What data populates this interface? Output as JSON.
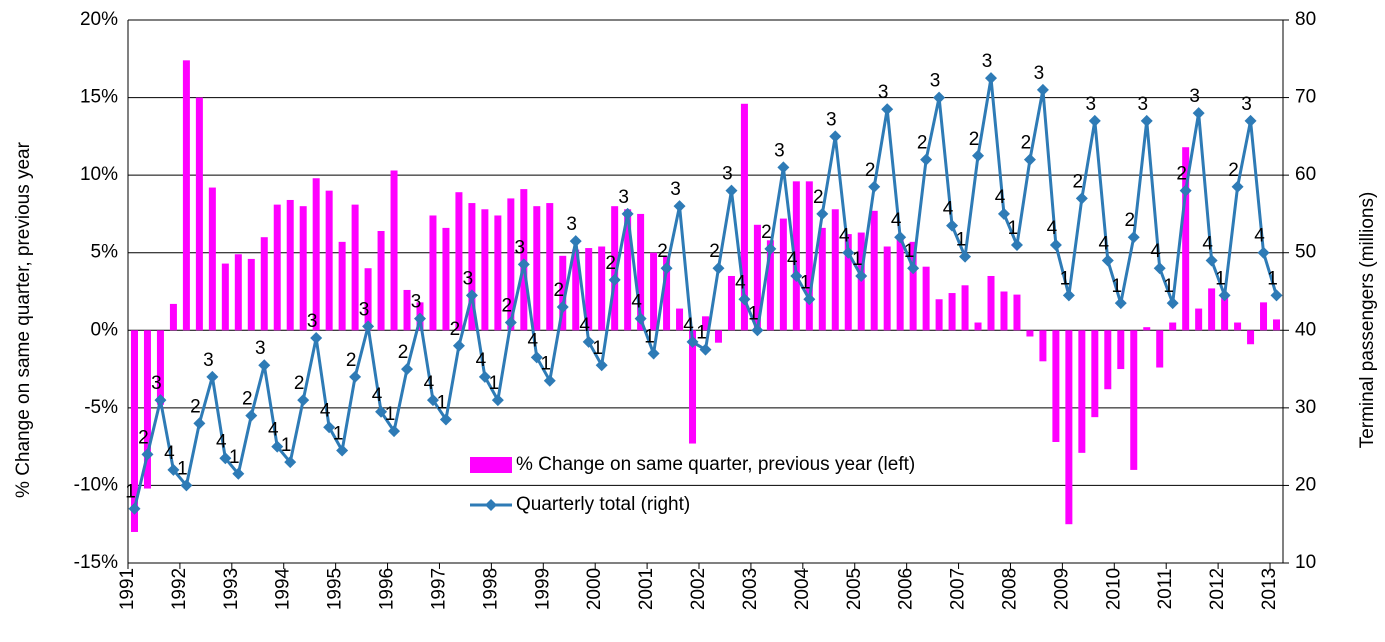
{
  "chart_data": {
    "type": "bar-line",
    "categories": [
      "1",
      "2",
      "3",
      "4",
      "1",
      "2",
      "3",
      "4",
      "1",
      "2",
      "3",
      "4",
      "1",
      "2",
      "3",
      "4",
      "1",
      "2",
      "3",
      "4",
      "1",
      "2",
      "3",
      "4",
      "1",
      "2",
      "3",
      "4",
      "1",
      "2",
      "3",
      "4",
      "1",
      "2",
      "3",
      "4",
      "1",
      "2",
      "3",
      "4",
      "1",
      "2",
      "3",
      "4",
      "1",
      "2",
      "3",
      "4",
      "1",
      "2",
      "3",
      "4",
      "1",
      "2",
      "3",
      "4",
      "1",
      "2",
      "3",
      "4",
      "1",
      "2",
      "3",
      "4",
      "1",
      "2",
      "3",
      "4",
      "1",
      "2",
      "3",
      "4",
      "1",
      "2",
      "3",
      "4",
      "1",
      "2",
      "3",
      "4",
      "1",
      "2",
      "3",
      "4",
      "1",
      "2",
      "3",
      "4",
      "1"
    ],
    "x_axis_labels": [
      "1991",
      "1992",
      "1993",
      "1994",
      "1995",
      "1996",
      "1997",
      "1998",
      "1999",
      "2000",
      "2001",
      "2002",
      "2003",
      "2004",
      "2005",
      "2006",
      "2007",
      "2008",
      "2009",
      "2010",
      "2011",
      "2012",
      "2013"
    ],
    "y_label": "% Change on same quarter, previous year",
    "y2_label": "Terminal passengers (millions)",
    "series": [
      {
        "name": "% Change on same quarter, previous year (left)",
        "color": "#ff00ff",
        "type": "bar",
        "values": [
          -13.0,
          -10.2,
          -4.8,
          1.7,
          17.4,
          15.0,
          9.2,
          4.3,
          4.9,
          4.6,
          6.0,
          8.1,
          8.4,
          8.0,
          9.8,
          9.0,
          5.7,
          8.1,
          4.0,
          6.4,
          10.3,
          2.6,
          1.8,
          7.4,
          6.6,
          8.9,
          8.2,
          7.8,
          7.4,
          8.5,
          9.1,
          8.0,
          8.2,
          4.8,
          5.2,
          5.3,
          5.4,
          8.0,
          7.8,
          7.5,
          5.0,
          4.8,
          1.4,
          -7.3,
          0.9,
          -0.8,
          3.5,
          14.6,
          6.8,
          5.8,
          7.2,
          9.6,
          9.6,
          6.6,
          7.8,
          6.2,
          6.3,
          7.7,
          5.4,
          6.0,
          5.7,
          4.1,
          2.0,
          2.4,
          2.9,
          0.5,
          3.5,
          2.5,
          2.3,
          -0.4,
          -2.0,
          -7.2,
          -12.5,
          -7.9,
          -5.6,
          -3.8,
          -2.5,
          -9.0,
          0.2,
          -2.4,
          0.5,
          11.8,
          1.4,
          2.7,
          2.3,
          0.5,
          -0.9,
          1.8,
          0.7
        ]
      },
      {
        "name": "Quarterly total (right)",
        "color": "#2e7bb6",
        "type": "line",
        "axis": "y2",
        "values": [
          17,
          24,
          31,
          22,
          20,
          28,
          34,
          23.5,
          21.5,
          29,
          35.5,
          25,
          23,
          31,
          39,
          27.5,
          24.5,
          34,
          40.5,
          29.5,
          27,
          35,
          41.5,
          31,
          28.5,
          38,
          44.5,
          34,
          31,
          41,
          48.5,
          36.5,
          33.5,
          43,
          51.5,
          38.5,
          35.5,
          46.5,
          55,
          41.5,
          37,
          48,
          56,
          38.5,
          37.5,
          48,
          58,
          44,
          40,
          50.5,
          61,
          47,
          44,
          55,
          65,
          50,
          47,
          58.5,
          68.5,
          52,
          48,
          62,
          70,
          53.5,
          49.5,
          62.5,
          72.5,
          55,
          51,
          62,
          71,
          51,
          44.5,
          57,
          67,
          49,
          43.5,
          52,
          67,
          48,
          43.5,
          58,
          68,
          49,
          44.5,
          58.5,
          67,
          50,
          44.5
        ]
      }
    ],
    "ylim": [
      -15,
      20
    ],
    "yticks": [
      {
        "value": -15,
        "label": "-15%"
      },
      {
        "value": -10,
        "label": "-10%"
      },
      {
        "value": -5,
        "label": "-5%"
      },
      {
        "value": 0,
        "label": "0%"
      },
      {
        "value": 5,
        "label": "5%"
      },
      {
        "value": 10,
        "label": "10%"
      },
      {
        "value": 15,
        "label": "15%"
      },
      {
        "value": 20,
        "label": "20%"
      }
    ],
    "y2lim": [
      10,
      80
    ],
    "y2ticks": [
      10,
      20,
      30,
      40,
      50,
      60,
      70,
      80
    ],
    "grid": true,
    "legend": "center"
  }
}
